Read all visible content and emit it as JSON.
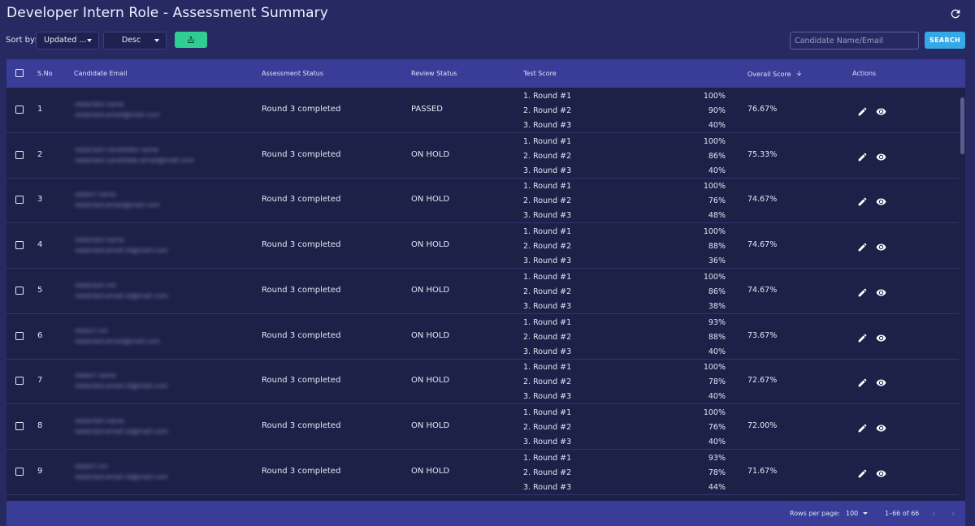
{
  "header": {
    "title": "Developer Intern Role - Assessment Summary",
    "refresh_icon": "refresh-icon"
  },
  "toolbar": {
    "sort_label": "Sort by:",
    "sort_value": "Updated ...",
    "order_value": "Desc",
    "export_icon": "upload-share-icon",
    "search_placeholder": "Candidate Name/Email",
    "search_button": "SEARCH"
  },
  "table": {
    "columns": {
      "sno": "S.No",
      "email": "Candidate Email",
      "assessment_status": "Assessment Status",
      "review_status": "Review Status",
      "test_score": "Test Score",
      "overall_score": "Overall Score",
      "actions": "Actions"
    },
    "rows": [
      {
        "sno": "1",
        "assessment_status": "Round 3 completed",
        "review_status": "PASSED",
        "rounds": [
          "1. Round #1",
          "2. Round #2",
          "3. Round #3"
        ],
        "scores": [
          "100%",
          "90%",
          "40%"
        ],
        "overall": "76.67%",
        "email_line1": "redacted name",
        "email_line2": "redacted.email@mail.com"
      },
      {
        "sno": "2",
        "assessment_status": "Round 3 completed",
        "review_status": "ON HOLD",
        "rounds": [
          "1. Round #1",
          "2. Round #2",
          "3. Round #3"
        ],
        "scores": [
          "100%",
          "86%",
          "40%"
        ],
        "overall": "75.33%",
        "email_line1": "redacted candidate name",
        "email_line2": "redacted.candidate.email@mail.com"
      },
      {
        "sno": "3",
        "assessment_status": "Round 3 completed",
        "review_status": "ON HOLD",
        "rounds": [
          "1. Round #1",
          "2. Round #2",
          "3. Round #3"
        ],
        "scores": [
          "100%",
          "76%",
          "48%"
        ],
        "overall": "74.67%",
        "email_line1": "redact name",
        "email_line2": "redacted.email@mail.com"
      },
      {
        "sno": "4",
        "assessment_status": "Round 3 completed",
        "review_status": "ON HOLD",
        "rounds": [
          "1. Round #1",
          "2. Round #2",
          "3. Round #3"
        ],
        "scores": [
          "100%",
          "88%",
          "36%"
        ],
        "overall": "74.67%",
        "email_line1": "redacted name",
        "email_line2": "redacted.email.id@mail.com"
      },
      {
        "sno": "5",
        "assessment_status": "Round 3 completed",
        "review_status": "ON HOLD",
        "rounds": [
          "1. Round #1",
          "2. Round #2",
          "3. Round #3"
        ],
        "scores": [
          "100%",
          "86%",
          "38%"
        ],
        "overall": "74.67%",
        "email_line1": "redacted nm",
        "email_line2": "redacted.email.id@mail.com"
      },
      {
        "sno": "6",
        "assessment_status": "Round 3 completed",
        "review_status": "ON HOLD",
        "rounds": [
          "1. Round #1",
          "2. Round #2",
          "3. Round #3"
        ],
        "scores": [
          "93%",
          "88%",
          "40%"
        ],
        "overall": "73.67%",
        "email_line1": "redact nm",
        "email_line2": "redacted.email@mail.com"
      },
      {
        "sno": "7",
        "assessment_status": "Round 3 completed",
        "review_status": "ON HOLD",
        "rounds": [
          "1. Round #1",
          "2. Round #2",
          "3. Round #3"
        ],
        "scores": [
          "100%",
          "78%",
          "40%"
        ],
        "overall": "72.67%",
        "email_line1": "redact name",
        "email_line2": "redacted.email.id@mail.com"
      },
      {
        "sno": "8",
        "assessment_status": "Round 3 completed",
        "review_status": "ON HOLD",
        "rounds": [
          "1. Round #1",
          "2. Round #2",
          "3. Round #3"
        ],
        "scores": [
          "100%",
          "76%",
          "40%"
        ],
        "overall": "72.00%",
        "email_line1": "redacted name",
        "email_line2": "redacted.email.id@mail.com"
      },
      {
        "sno": "9",
        "assessment_status": "Round 3 completed",
        "review_status": "ON HOLD",
        "rounds": [
          "1. Round #1",
          "2. Round #2",
          "3. Round #3"
        ],
        "scores": [
          "93%",
          "78%",
          "44%"
        ],
        "overall": "71.67%",
        "email_line1": "redact nm",
        "email_line2": "redacted.email.id@mail.com"
      }
    ],
    "action_icons": [
      "edit-pencil-icon",
      "view-eye-icon"
    ],
    "sort_indicator_icon": "arrow-down-icon"
  },
  "footer": {
    "rows_per_page_label": "Rows per page:",
    "rows_per_page_value": "100",
    "range_text": "1–66 of 66",
    "prev_icon": "chevron-left-icon",
    "next_icon": "chevron-right-icon"
  },
  "colors": {
    "background": "#272a62",
    "header_bar": "#3a3d98",
    "table_body": "#1d2047",
    "export_button": "#2fcc93",
    "search_button": "#35a8e6"
  }
}
